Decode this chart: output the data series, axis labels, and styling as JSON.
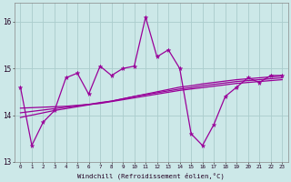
{
  "xlabel": "Windchill (Refroidissement éolien,°C)",
  "ylabel": "",
  "background_color": "#cce8e8",
  "grid_color": "#aacccc",
  "line_color": "#990099",
  "xlim": [
    -0.5,
    23.5
  ],
  "ylim": [
    13.0,
    16.4
  ],
  "yticks": [
    13,
    14,
    15,
    16
  ],
  "xticks": [
    0,
    1,
    2,
    3,
    4,
    5,
    6,
    7,
    8,
    9,
    10,
    11,
    12,
    13,
    14,
    15,
    16,
    17,
    18,
    19,
    20,
    21,
    22,
    23
  ],
  "main_y": [
    14.6,
    13.35,
    13.85,
    14.1,
    14.8,
    14.9,
    14.45,
    15.05,
    14.85,
    15.0,
    15.05,
    16.1,
    15.25,
    15.4,
    15.0,
    13.6,
    13.35,
    13.8,
    14.4,
    14.6,
    14.8,
    14.7,
    14.85,
    14.85
  ],
  "reg1_y": [
    13.95,
    14.0,
    14.05,
    14.1,
    14.14,
    14.18,
    14.22,
    14.26,
    14.3,
    14.35,
    14.4,
    14.45,
    14.5,
    14.55,
    14.6,
    14.63,
    14.67,
    14.7,
    14.73,
    14.76,
    14.78,
    14.8,
    14.82,
    14.84
  ],
  "reg2_y": [
    14.05,
    14.08,
    14.11,
    14.14,
    14.17,
    14.2,
    14.23,
    14.27,
    14.3,
    14.35,
    14.4,
    14.44,
    14.48,
    14.52,
    14.56,
    14.59,
    14.63,
    14.66,
    14.69,
    14.72,
    14.74,
    14.76,
    14.78,
    14.8
  ],
  "reg3_y": [
    14.15,
    14.16,
    14.17,
    14.18,
    14.19,
    14.21,
    14.23,
    14.25,
    14.29,
    14.33,
    14.37,
    14.41,
    14.45,
    14.49,
    14.53,
    14.56,
    14.59,
    14.62,
    14.65,
    14.68,
    14.7,
    14.72,
    14.74,
    14.76
  ]
}
